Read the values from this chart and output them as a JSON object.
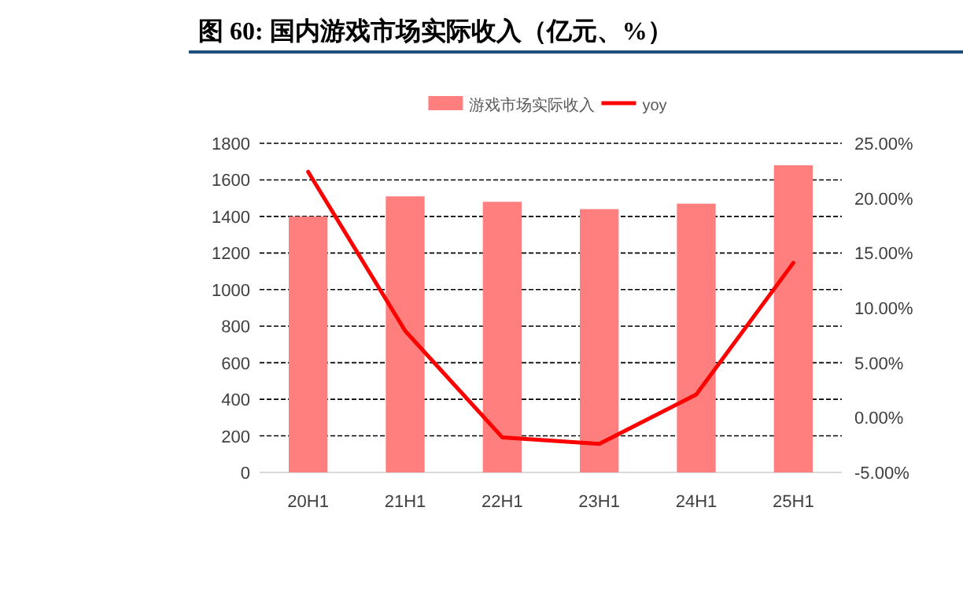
{
  "chart_data": {
    "type": "bar",
    "title": "图 60: 国内游戏市场实际收入（亿元、%）",
    "categories": [
      "20H1",
      "21H1",
      "22H1",
      "23H1",
      "24H1",
      "25H1"
    ],
    "series": [
      {
        "name": "游戏市场实际收入",
        "color": "#ff7f7f",
        "values": [
          1400,
          1510,
          1480,
          1440,
          1470,
          1680
        ]
      },
      {
        "name": "yoy",
        "type": "line",
        "axis": "y2",
        "color": "#ff0000",
        "values": [
          22.4,
          7.9,
          -1.8,
          -2.4,
          2.1,
          14.1
        ]
      }
    ],
    "ylim": [
      0,
      1800
    ],
    "yticks": [
      0,
      200,
      400,
      600,
      800,
      1000,
      1200,
      1400,
      1600,
      1800
    ],
    "y2lim": [
      -5,
      25
    ],
    "y2ticks": [
      {
        "value": -5,
        "label": "-5.00%"
      },
      {
        "value": 0,
        "label": "0.00%"
      },
      {
        "value": 5,
        "label": "5.00%"
      },
      {
        "value": 10,
        "label": "10.00%"
      },
      {
        "value": 15,
        "label": "15.00%"
      },
      {
        "value": 20,
        "label": "20.00%"
      },
      {
        "value": 25,
        "label": "25.00%"
      }
    ],
    "grid": "y",
    "legend": "top"
  }
}
